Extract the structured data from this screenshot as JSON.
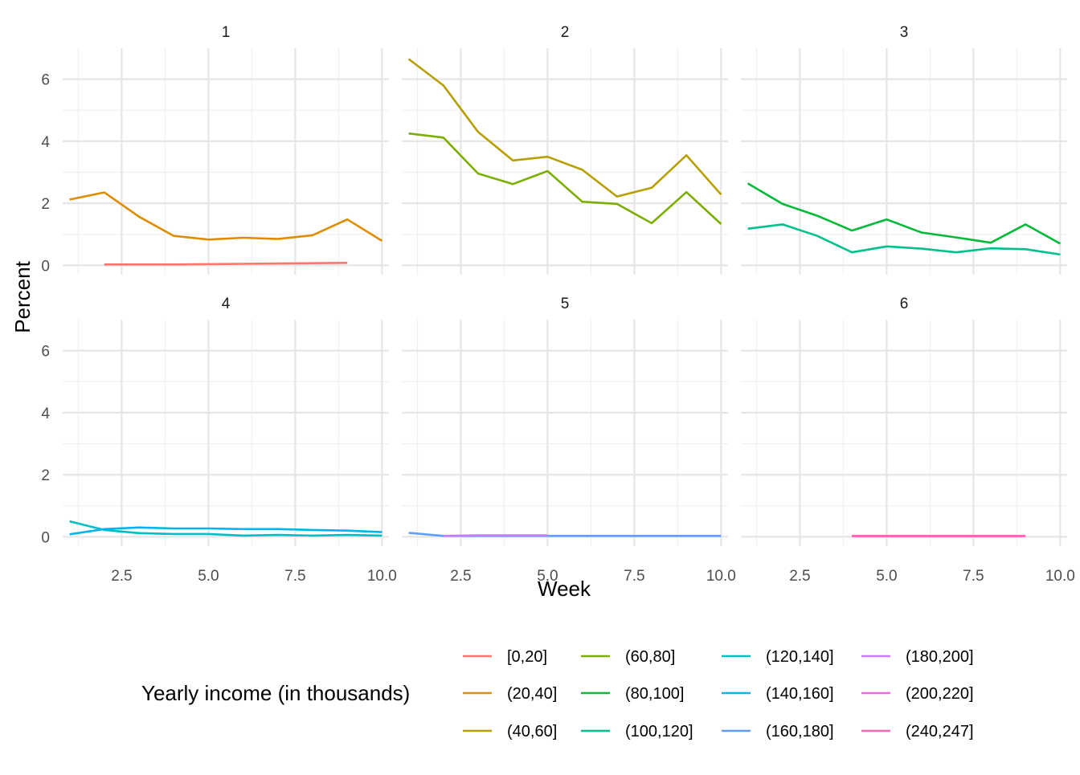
{
  "chart_data": {
    "type": "line",
    "facet_by": "panel",
    "panels": [
      "1",
      "2",
      "3",
      "4",
      "5",
      "6"
    ],
    "xlabel": "Week",
    "ylabel": "Percent",
    "xlim": [
      0.8,
      10.2
    ],
    "ylim": [
      -0.3,
      7.0
    ],
    "x_ticks": [
      2.5,
      5.0,
      7.5,
      10.0
    ],
    "x_tick_labels": [
      "2.5",
      "5.0",
      "7.5",
      "10.0"
    ],
    "y_ticks": [
      0,
      2,
      4,
      6
    ],
    "y_tick_labels": [
      "0",
      "2",
      "4",
      "6"
    ],
    "grid": true,
    "legend": {
      "title": "Yearly income (in thousands)",
      "position": "bottom"
    },
    "series": [
      {
        "name": "[0,20]",
        "panel": "1",
        "color": "#F8766D",
        "x": [
          2,
          3,
          4,
          5,
          6,
          7,
          8,
          9
        ],
        "y": [
          0.03,
          0.03,
          0.03,
          0.04,
          0.05,
          0.06,
          0.07,
          0.08
        ]
      },
      {
        "name": "(20,40]",
        "panel": "1",
        "color": "#DE8C00",
        "x": [
          1,
          2,
          3,
          4,
          5,
          6,
          7,
          8,
          9,
          10
        ],
        "y": [
          2.12,
          2.35,
          1.57,
          0.95,
          0.83,
          0.89,
          0.85,
          0.97,
          1.48,
          0.79
        ]
      },
      {
        "name": "(40,60]",
        "panel": "2",
        "color": "#B79F00",
        "x": [
          1,
          2,
          3,
          4,
          5,
          6,
          7,
          8,
          9,
          10
        ],
        "y": [
          6.65,
          5.8,
          4.3,
          3.38,
          3.5,
          3.08,
          2.22,
          2.5,
          3.55,
          2.28
        ]
      },
      {
        "name": "(60,80]",
        "panel": "2",
        "color": "#7CAE00",
        "x": [
          1,
          2,
          3,
          4,
          5,
          6,
          7,
          8,
          9,
          10
        ],
        "y": [
          4.25,
          4.12,
          2.96,
          2.62,
          3.04,
          2.05,
          1.98,
          1.36,
          2.36,
          1.33
        ]
      },
      {
        "name": "(80,100]",
        "panel": "3",
        "color": "#00BA38",
        "x": [
          1,
          2,
          3,
          4,
          5,
          6,
          7,
          8,
          9,
          10
        ],
        "y": [
          2.64,
          1.98,
          1.6,
          1.12,
          1.48,
          1.06,
          0.9,
          0.73,
          1.32,
          0.7
        ]
      },
      {
        "name": "(100,120]",
        "panel": "3",
        "color": "#00C08B",
        "x": [
          1,
          2,
          3,
          4,
          5,
          6,
          7,
          8,
          9,
          10
        ],
        "y": [
          1.18,
          1.32,
          0.95,
          0.42,
          0.61,
          0.54,
          0.42,
          0.55,
          0.52,
          0.35
        ]
      },
      {
        "name": "(120,140]",
        "panel": "4",
        "color": "#00BFC4",
        "x": [
          1,
          2,
          3,
          4,
          5,
          6,
          7,
          8,
          9,
          10
        ],
        "y": [
          0.5,
          0.22,
          0.12,
          0.09,
          0.09,
          0.04,
          0.06,
          0.04,
          0.06,
          0.04
        ]
      },
      {
        "name": "(140,160]",
        "panel": "4",
        "color": "#00B4F0",
        "x": [
          1,
          2,
          3,
          4,
          5,
          6,
          7,
          8,
          9,
          10
        ],
        "y": [
          0.08,
          0.25,
          0.3,
          0.27,
          0.27,
          0.25,
          0.25,
          0.22,
          0.2,
          0.15
        ]
      },
      {
        "name": "(160,180]",
        "panel": "5",
        "color": "#619CFF",
        "x": [
          1,
          2,
          3,
          4,
          5,
          6,
          7,
          8,
          9,
          10
        ],
        "y": [
          0.13,
          0.03,
          0.03,
          0.03,
          0.03,
          0.03,
          0.03,
          0.03,
          0.03,
          0.03
        ]
      },
      {
        "name": "(180,200]",
        "panel": "5",
        "color": "#C77CFF",
        "x": [
          2,
          3,
          4,
          5
        ],
        "y": [
          0.03,
          0.05,
          0.05,
          0.05
        ]
      },
      {
        "name": "(200,220]",
        "panel": "6",
        "color": "#F564E3",
        "x": [
          4,
          5,
          6,
          7,
          8,
          9
        ],
        "y": [
          0.03,
          0.03,
          0.03,
          0.03,
          0.03,
          0.03
        ]
      },
      {
        "name": "(240,247]",
        "panel": "6",
        "color": "#FF64B0",
        "x": [
          4,
          5,
          6,
          7,
          8,
          9
        ],
        "y": [
          0.02,
          0.02,
          0.02,
          0.02,
          0.02,
          0.02
        ]
      }
    ]
  }
}
